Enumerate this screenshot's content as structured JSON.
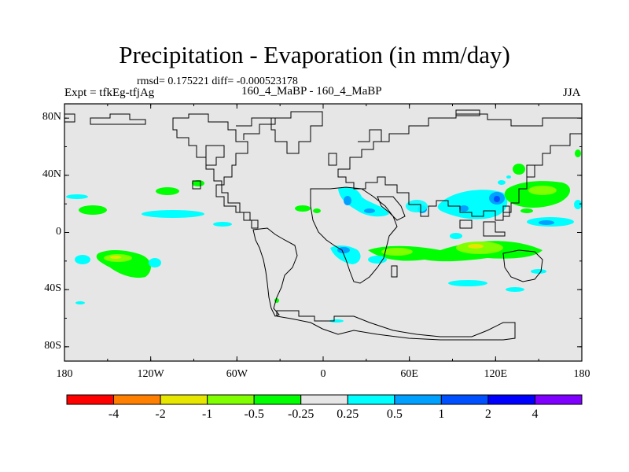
{
  "title": "Precipitation - Evaporation (in mm/day)",
  "stats": "rmsd= 0.175221 diff= -0.000523178",
  "experiment": "Expt = tfkEg-tfjAg",
  "period": "160_4_MaBP - 160_4_MaBP",
  "season": "JJA",
  "map": {
    "lon_range": [
      -180,
      180
    ],
    "lat_range": [
      -90,
      90
    ],
    "background_color": "#e6e6e6",
    "lat_ticks": [
      {
        "value": 80,
        "label": "80N"
      },
      {
        "value": 40,
        "label": "40N"
      },
      {
        "value": 0,
        "label": "0"
      },
      {
        "value": -40,
        "label": "40S"
      },
      {
        "value": -80,
        "label": "80S"
      }
    ],
    "lon_ticks": [
      {
        "value": -180,
        "label": "180"
      },
      {
        "value": -120,
        "label": "120W"
      },
      {
        "value": -60,
        "label": "60W"
      },
      {
        "value": 0,
        "label": "0"
      },
      {
        "value": 60,
        "label": "60E"
      },
      {
        "value": 120,
        "label": "120E"
      },
      {
        "value": 180,
        "label": "180"
      }
    ]
  },
  "colorbar": {
    "colors": [
      "#ff0000",
      "#ff8000",
      "#e6e600",
      "#80ff00",
      "#00ff00",
      "#e6e6e6",
      "#00ffff",
      "#00a0ff",
      "#0050ff",
      "#0000ff",
      "#8000ff"
    ],
    "labels": [
      "-4",
      "-2",
      "-1",
      "-0.5",
      "-0.25",
      "0.25",
      "0.5",
      "1",
      "2",
      "4"
    ]
  },
  "chart_data": {
    "type": "heatmap",
    "title": "Precipitation - Evaporation (in mm/day)",
    "units": "mm/day",
    "levels": [
      -4,
      -2,
      -1,
      -0.5,
      -0.25,
      0.25,
      0.5,
      1,
      2,
      4
    ],
    "anomalies": [
      {
        "lon": -170,
        "lat": 20,
        "value": -0.3
      },
      {
        "lon": -150,
        "lat": 15,
        "value": 0.3
      },
      {
        "lon": -140,
        "lat": -18,
        "value": -0.5
      },
      {
        "lon": -160,
        "lat": -20,
        "value": 0.3
      },
      {
        "lon": -110,
        "lat": 27,
        "value": -0.3
      },
      {
        "lon": -115,
        "lat": 10,
        "value": 0.3
      },
      {
        "lon": -10,
        "lat": 15,
        "value": -0.3
      },
      {
        "lon": 25,
        "lat": 25,
        "value": 0.5
      },
      {
        "lon": 15,
        "lat": -12,
        "value": 0.5
      },
      {
        "lon": 60,
        "lat": -14,
        "value": -0.5
      },
      {
        "lon": 110,
        "lat": -13,
        "value": -1
      },
      {
        "lon": 110,
        "lat": 25,
        "value": 1
      },
      {
        "lon": 135,
        "lat": 30,
        "value": -0.5
      },
      {
        "lon": 150,
        "lat": 25,
        "value": -0.5
      },
      {
        "lon": 140,
        "lat": 10,
        "value": 0.3
      },
      {
        "lon": 110,
        "lat": -35,
        "value": 0.3
      }
    ]
  }
}
